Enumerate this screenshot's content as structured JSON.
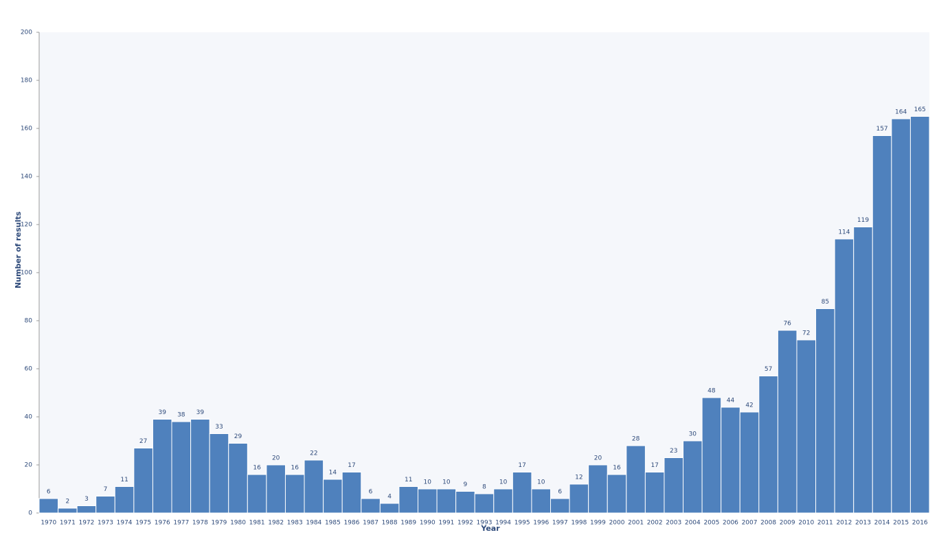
{
  "chart_data": {
    "type": "bar",
    "x_label": "Year",
    "y_label": "Number of results",
    "categories": [
      "1970",
      "1971",
      "1972",
      "1973",
      "1974",
      "1975",
      "1976",
      "1977",
      "1978",
      "1979",
      "1980",
      "1981",
      "1982",
      "1983",
      "1984",
      "1985",
      "1986",
      "1987",
      "1988",
      "1989",
      "1990",
      "1991",
      "1992",
      "1993",
      "1994",
      "1995",
      "1996",
      "1997",
      "1998",
      "1999",
      "2000",
      "2001",
      "2002",
      "2003",
      "2004",
      "2005",
      "2006",
      "2007",
      "2008",
      "2009",
      "2010",
      "2011",
      "2012",
      "2013",
      "2014",
      "2015",
      "2016"
    ],
    "values": [
      6,
      2,
      3,
      7,
      11,
      27,
      39,
      38,
      39,
      33,
      29,
      16,
      20,
      16,
      22,
      14,
      17,
      6,
      4,
      11,
      10,
      10,
      9,
      8,
      10,
      17,
      10,
      6,
      12,
      20,
      16,
      28,
      17,
      23,
      30,
      48,
      44,
      42,
      57,
      76,
      72,
      85,
      114,
      119,
      157,
      164,
      165
    ],
    "color": "#4f81bd",
    "ylim": [
      0,
      200
    ],
    "yticks": [
      0,
      20,
      40,
      60,
      80,
      100,
      120,
      140,
      160,
      180,
      200
    ],
    "grid": false,
    "data_labels": true
  }
}
